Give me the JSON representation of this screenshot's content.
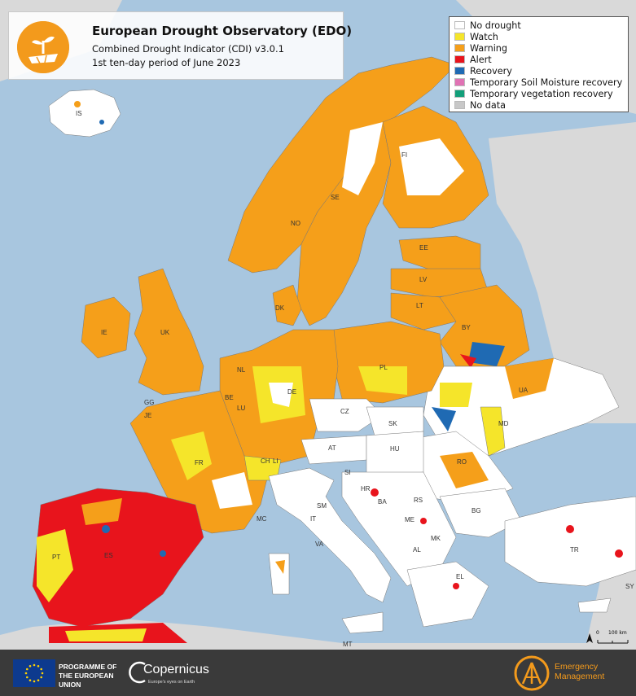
{
  "header": {
    "title": "European Drought Observatory (EDO)",
    "subtitle": "Combined Drought Indicator (CDI) v3.0.1",
    "period": "1st ten-day period of June 2023",
    "logo_icon": "drought-plant-icon"
  },
  "legend": {
    "items": [
      {
        "label": "No drought",
        "color": "#ffffff"
      },
      {
        "label": "Watch",
        "color": "#f5e52a"
      },
      {
        "label": "Warning",
        "color": "#f59f1a"
      },
      {
        "label": "Alert",
        "color": "#e8141c"
      },
      {
        "label": "Recovery",
        "color": "#1f6ab3"
      },
      {
        "label": "Temporary Soil Moisture recovery",
        "color": "#e072b4"
      },
      {
        "label": "Temporary vegetation recovery",
        "color": "#129f7a"
      },
      {
        "label": "No data",
        "color": "#c8c8c8"
      }
    ]
  },
  "country_labels": [
    "IS",
    "FI",
    "SE",
    "NO",
    "EE",
    "LV",
    "LT",
    "DK",
    "IE",
    "UK",
    "BY",
    "PL",
    "NL",
    "BE",
    "LU",
    "DE",
    "GG",
    "JE",
    "CZ",
    "SK",
    "UA",
    "FR",
    "CH",
    "LI",
    "AT",
    "HU",
    "MD",
    "SI",
    "RO",
    "HR",
    "RS",
    "BA",
    "SM",
    "MC",
    "IT",
    "ME",
    "BG",
    "MK",
    "AL",
    "VA",
    "TR",
    "EL",
    "PT",
    "ES",
    "MT",
    "SY"
  ],
  "scale": {
    "zero": "0",
    "distance": "100 km"
  },
  "footer": {
    "programme": "PROGRAMME OF THE EUROPEAN UNION",
    "copernicus": "Copernicus",
    "copernicus_tagline": "Europe's eyes on Earth",
    "em_line1": "Emergency",
    "em_line2": "Management"
  },
  "colors": {
    "sea": "#a8c6df",
    "non_eu_land": "#d9d9d9",
    "accent": "#f39a1c"
  }
}
